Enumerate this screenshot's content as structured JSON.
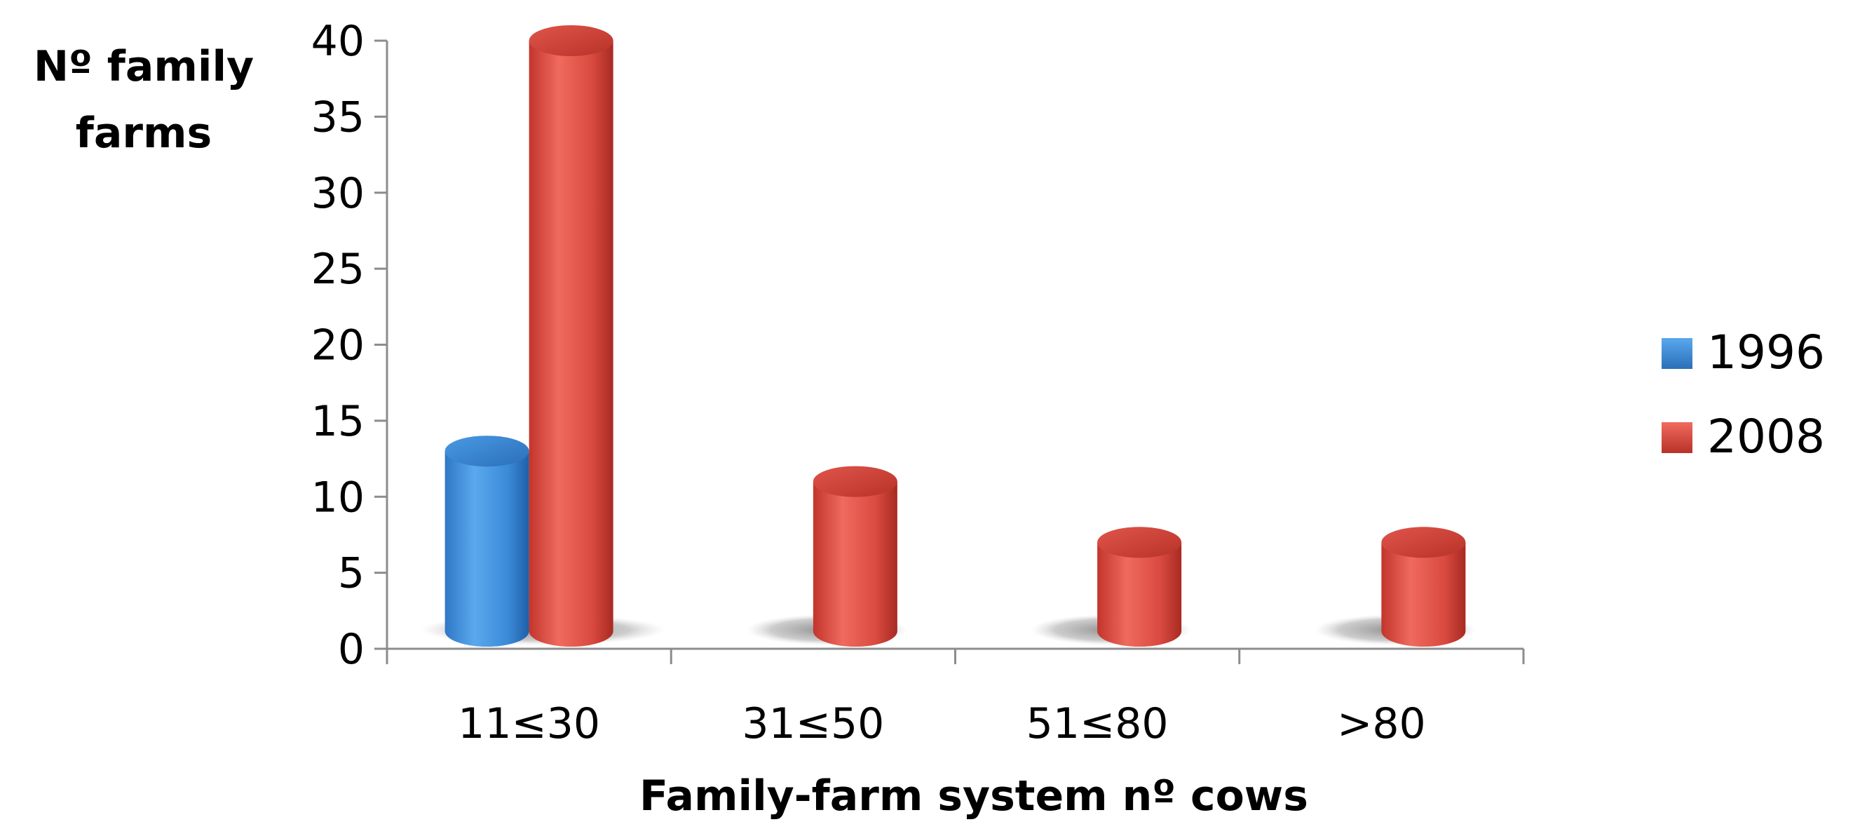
{
  "chart_data": {
    "type": "bar",
    "style": "3d-cylinder",
    "title": "",
    "ylabel_lines": [
      "Nº family",
      "farms"
    ],
    "xlabel": "Family-farm system nº cows",
    "categories": [
      "11≤30",
      "31≤50",
      "51≤80",
      ">80"
    ],
    "series": [
      {
        "name": "1996",
        "color": "#3d8fd9",
        "values": [
          13,
          0,
          0,
          0
        ]
      },
      {
        "name": "2008",
        "color": "#d9443a",
        "values": [
          40,
          11,
          7,
          7
        ]
      }
    ],
    "ylim": [
      0,
      40
    ],
    "yticks": [
      "0",
      "5",
      "10",
      "15",
      "20",
      "25",
      "30",
      "35",
      "40"
    ],
    "grid": false,
    "legend_position": "right"
  }
}
